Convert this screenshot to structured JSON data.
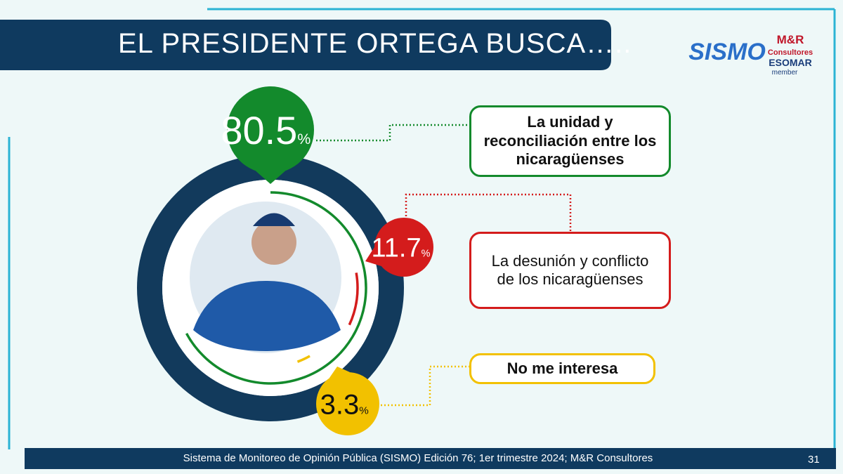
{
  "chart_data": {
    "type": "radial",
    "title": "EL PRESIDENTE ORTEGA BUSCA…..",
    "categories": [
      "La unidad y reconciliación entre los nicaragüenses",
      "La desunión y conflicto de los nicaragüenses",
      "No me interesa"
    ],
    "values": [
      80.5,
      11.7,
      3.3
    ],
    "unit": "%",
    "colors": [
      "#138a2c",
      "#d41c1c",
      "#f2c100"
    ]
  },
  "logos": [
    "SISMO",
    "M&R",
    "Consultores",
    "ESOMAR",
    "member"
  ],
  "footer": "Sistema de Monitoreo de Opinión Pública (SISMO) Edición 76; 1er trimestre 2024; M&R Consultores",
  "page_number": "31"
}
